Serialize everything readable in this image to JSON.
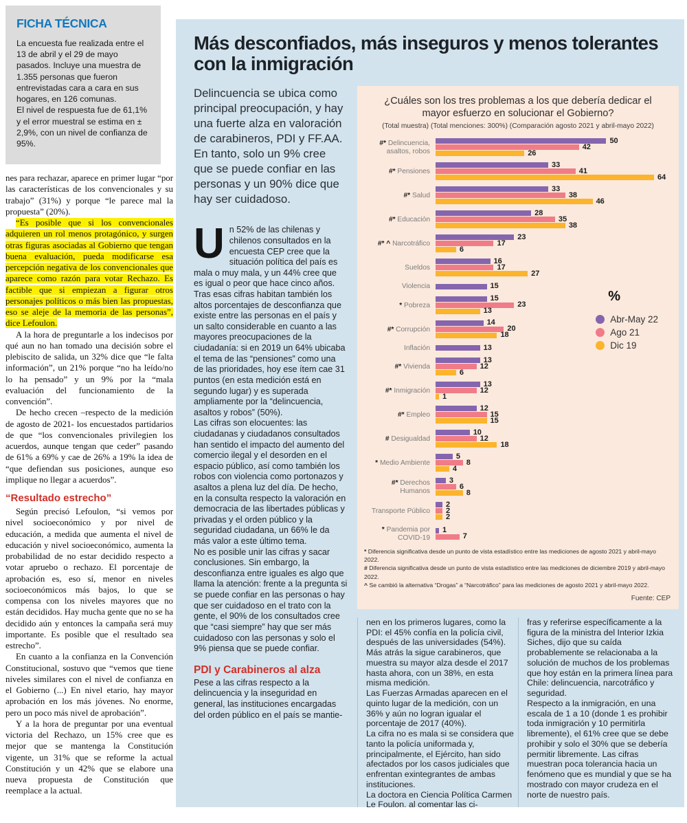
{
  "colors": {
    "panel_blue": "#d2e3ee",
    "chart_background": "#fbe9dd",
    "ficha_title_blue": "#1278be",
    "subhead_red": "#d03028",
    "highlight_yellow": "#fcf000"
  },
  "ficha": {
    "title": "FICHA TÉCNICA",
    "paragraphs": [
      {
        "type": "p-plain",
        "text": "La encuesta fue realizada entre el 13 de abril y el 29 de mayo pasados. Incluye una muestra de 1.355 personas que fueron entrevistadas cara a cara en sus hogares, en 126 comunas."
      },
      {
        "type": "p-plain",
        "text": "El nivel de respuesta fue de 61,1% y el error muestral se estima en ± 2,9%, con un nivel de confianza de 95%."
      }
    ]
  },
  "left_column": {
    "blocks": [
      {
        "type": "p-first",
        "text": "nes para rechazar, aparece en primer lugar “por las características de los convencionales y su trabajo” (31%) y porque “le parece mal la propuesta” (20%)."
      },
      {
        "type": "p-highlight",
        "text": "“Es posible que si los convencionales adquieren un rol menos protagónico, y surgen otras figuras asociadas al Gobierno que tengan buena evaluación, pueda modificarse esa percepción negativa de los convencionales que aparece como razón para votar Rechazo. Es factible que si empiezan a figurar otros personajes políticos o más bien las propuestas, eso se aleje de la memoria de las personas”, dice Lefoulon."
      },
      {
        "type": "p",
        "text": "A la hora de preguntarle a los indecisos por qué aun no han tomado una decisión sobre el plebiscito de salida, un 32% dice que “le falta información”, un 21% porque “no ha leído/no lo ha pensado” y un 9% por la “mala evaluación del funcionamiento de la convención”."
      },
      {
        "type": "p",
        "text": "De hecho crecen –respecto de la medición de agosto de 2021- los encuestados partidarios de que “los convencionales privilegien los acuerdos, aunque tengan que ceder” pasando de 61% a 69% y cae de 26% a 19% la idea de “que defiendan sus posiciones, aunque eso implique no llegar a acuerdos”."
      },
      {
        "type": "subhead",
        "text": "“Resultado estrecho”"
      },
      {
        "type": "p",
        "text": "Según precisó Lefoulon, “si vemos por nivel socioeconómico y por nivel de educación, a medida que aumenta el nivel de educación y nivel socioeconómico, aumenta la probabilidad de no estar decidido respecto a votar apruebo o rechazo. El porcentaje de aprobación es, eso sí, menor en niveles socioeconómicos más bajos, lo que se compensa con los niveles mayores que no están decididos. Hay mucha gente que no se ha decidido aún y entonces la campaña será muy importante. Es posible que el resultado sea estrecho”."
      },
      {
        "type": "p",
        "text": "En cuanto a la confianza en la Convención Constitucional, sostuvo que “vemos que tiene niveles similares con el nivel de confianza en el Gobierno (...) En nivel etario, hay mayor aprobación en los más jóvenes. No enorme, pero un poco más nivel de aprobación”."
      },
      {
        "type": "p",
        "text": "Y a la hora de preguntar por una eventual victoria del Rechazo, un 15% cree que es mejor que se mantenga la Constitución vigente, un 31% que se reforme la actual Constitución y un 42% que se elabore una nueva propuesta de Constitución que reemplace a la actual."
      }
    ]
  },
  "headline": {
    "text": "Más desconfiados, más inseguros y menos tolerantes con la inmigración"
  },
  "lead": {
    "text": "Delincuencia se ubica como principal preocupación, y hay una fuerte alza en valoración de carabineros, PDI y FF.AA. En tanto, solo un 9% cree que se puede confiar en las personas y un 90% dice que hay ser cuidadoso."
  },
  "article": {
    "blocks": [
      {
        "type": "p-drop",
        "dropcap": "U",
        "text": "n 52% de las chilenas y chilenos consultados en la encuesta CEP cree que la situación política del país es mala o muy mala, y un 44% cree que es igual o peor que hace cinco años. Tras esas cifras habitan también los altos porcentajes de desconfianza que existe entre las personas en el país y un salto considerable en cuanto a las mayores preocupaciones de la ciudadanía: si en 2019 un 64% ubicaba el tema de las “pensiones” como una de las prioridades, hoy ese ítem cae 31 puntos (en esta medición está en segundo lugar) y es superada ampliamente por la “delincuencia, asaltos y robos” (50%)."
      },
      {
        "type": "p-plain",
        "text": "Las cifras son elocuentes: las ciudadanas y ciudadanos consultados han sentido el impacto del aumento del comercio ilegal y el desorden en el espacio público, así como también los robos con violencia como portonazos y asaltos a plena luz del día. De hecho, en la consulta respecto la valoración en democracia de las libertades públicas y privadas y el orden público y la seguridad ciudadana, un 66% le da más valor a este último tema."
      },
      {
        "type": "p-plain",
        "text": "No es posible unir las cifras y sacar conclusiones. Sin embargo, la desconfianza entre iguales es algo que llama la atención: frente a la pregunta si se puede confiar en las personas o hay que ser cuidadoso en el trato con la gente, el 90% de los consultados cree que “casi siempre” hay que ser más cuidadoso con las personas y solo el 9% piensa que se puede confiar."
      },
      {
        "type": "subhead",
        "text": "PDI y Carabineros al alza"
      },
      {
        "type": "p-plain",
        "text": "Pese a las cifras respecto a la delincuencia y la inseguridad en general, las instituciones encargadas del orden público en el país se mantie-"
      }
    ]
  },
  "bottom_columns": {
    "col1": [
      {
        "type": "p-plain",
        "text": "nen en los primeros lugares, como la PDI: el 45% confía en la policía civil, después de las universidades (54%). Más atrás la sigue carabineros, que muestra su mayor alza desde el 2017 hasta ahora, con un 38%, en esta misma medición."
      },
      {
        "type": "p-plain",
        "text": "Las Fuerzas Armadas aparecen en el quinto lugar de la medición, con un 36% y aún no logran igualar el porcentaje de 2017 (40%)."
      },
      {
        "type": "p-plain",
        "text": "La cifra no es mala si se considera que tanto la policía uniformada y, principalmente, el Ejército, han sido afectados por los casos judiciales que enfrentan exintegrantes de ambas instituciones."
      },
      {
        "type": "p-plain",
        "text": "La doctora en Ciencia Política Carmen Le Foulon, al comentar las ci-"
      }
    ],
    "col2": [
      {
        "type": "p-plain",
        "text": "fras y referirse específicamente a la figura de la ministra del Interior Izkia Siches, dijo que su caída probablemente se relacionaba a la solución de muchos de los problemas que hoy están en la primera línea para Chile: delincuencia, narcotráfico y seguridad."
      },
      {
        "type": "p-plain",
        "text": "Respecto a la inmigración, en una escala de 1 a 10 (donde 1 es prohibir toda inmigración y 10 permitirla libremente), el 61% cree que se debe prohibir y solo el 30% que se debería permitir libremente. Las cifras muestran poca tolerancia hacia un fenómeno que es mundial y que se ha mostrado con mayor crudeza en el norte de nuestro país."
      }
    ]
  },
  "chart": {
    "title": "¿Cuáles son los tres problemas a los que debería dedicar el mayor esfuerzo en solucionar el Gobierno?",
    "subtitle": "(Total muestra) (Total menciones: 300%) (Comparación agosto 2021 y abril-mayo 2022)",
    "percent_label": "%",
    "source": "Fuente: CEP",
    "footnotes": [
      {
        "marker": "*",
        "text": "Diferencia significativa desde un punto de vista estadístico entre las mediciones de agosto 2021 y abril-mayo 2022."
      },
      {
        "marker": "#",
        "text": "Diferencia significativa desde un punto de vista estadístico entre las mediciones de diciembre 2019 y abril-mayo 2022."
      },
      {
        "marker": "^",
        "text": "Se cambió la alternativa “Drogas” a “Narcotráfico” para las mediciones de agosto 2021 y abril-mayo 2022."
      }
    ]
  },
  "chart_data": {
    "type": "bar",
    "orientation": "horizontal",
    "title": "¿Cuáles son los tres problemas a los que debería dedicar el mayor esfuerzo en solucionar el Gobierno?",
    "xlim": [
      0,
      64
    ],
    "legend_position": "right",
    "categories": [
      "Delincuencia, asaltos, robos",
      "Pensiones",
      "Salud",
      "Educación",
      "Narcotráfico",
      "Sueldos",
      "Violencia",
      "Pobreza",
      "Corrupción",
      "Inflación",
      "Vivienda",
      "Inmigración",
      "Empleo",
      "Desigualdad",
      "Medio Ambiente",
      "Derechos Humanos",
      "Transporte Público",
      "Pandemia por COVID-19"
    ],
    "category_prefixes": [
      "#*",
      "#*",
      "#*",
      "#*",
      "#* ^",
      "",
      "",
      "*",
      "#*",
      "",
      "#*",
      "#*",
      "#*",
      "#",
      "*",
      "#*",
      "",
      "*"
    ],
    "series": [
      {
        "name": "Abr-May 22",
        "color": "#8565ae",
        "values": [
          50,
          33,
          33,
          28,
          23,
          16,
          15,
          15,
          14,
          13,
          13,
          13,
          12,
          10,
          5,
          3,
          2,
          1
        ]
      },
      {
        "name": "Ago 21",
        "color": "#f07c88",
        "values": [
          42,
          41,
          38,
          35,
          17,
          17,
          null,
          23,
          20,
          null,
          12,
          12,
          15,
          12,
          8,
          6,
          2,
          7
        ]
      },
      {
        "name": "Dic 19",
        "color": "#fbb42c",
        "values": [
          26,
          64,
          46,
          38,
          6,
          27,
          null,
          13,
          18,
          null,
          6,
          1,
          15,
          18,
          4,
          8,
          2,
          null
        ]
      }
    ]
  }
}
